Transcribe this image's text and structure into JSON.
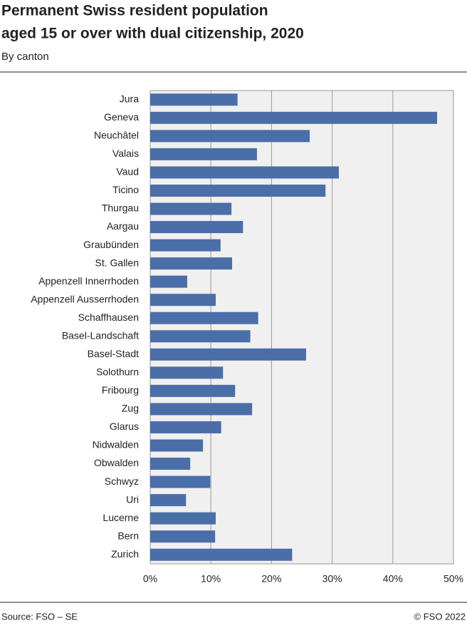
{
  "chart_data": {
    "type": "barh",
    "title": [
      "Permanent Swiss resident population",
      "aged 15 or over with dual citizenship, 2020"
    ],
    "subtitle": "By canton",
    "source": "Source: FSO – SE",
    "credit": "© FSO 2022",
    "categories": [
      "Jura",
      "Geneva",
      "Neuchâtel",
      "Valais",
      "Vaud",
      "Ticino",
      "Thurgau",
      "Aargau",
      "Graubünden",
      "St. Gallen",
      "Appenzell Innerrhoden",
      "Appenzell Ausserrhoden",
      "Schaffhausen",
      "Basel-Landschaft",
      "Basel-Stadt",
      "Solothurn",
      "Fribourg",
      "Zug",
      "Glarus",
      "Nidwalden",
      "Obwalden",
      "Schwyz",
      "Uri",
      "Lucerne",
      "Bern",
      "Zurich"
    ],
    "values": [
      14.4,
      47.3,
      26.3,
      17.6,
      31.1,
      28.9,
      13.4,
      15.3,
      11.6,
      13.5,
      6.1,
      10.8,
      17.8,
      16.5,
      25.7,
      12.0,
      14.0,
      16.8,
      11.7,
      8.7,
      6.6,
      9.9,
      5.9,
      10.8,
      10.7,
      23.4
    ],
    "color": "#4a6ea8",
    "xlim": [
      0,
      50
    ],
    "xticks": [
      {
        "value": 0,
        "label": "0%"
      },
      {
        "value": 10,
        "label": "10%"
      },
      {
        "value": 20,
        "label": "20%"
      },
      {
        "value": 30,
        "label": "30%"
      },
      {
        "value": 40,
        "label": "40%"
      },
      {
        "value": 50,
        "label": "50%"
      }
    ],
    "grid": true
  }
}
